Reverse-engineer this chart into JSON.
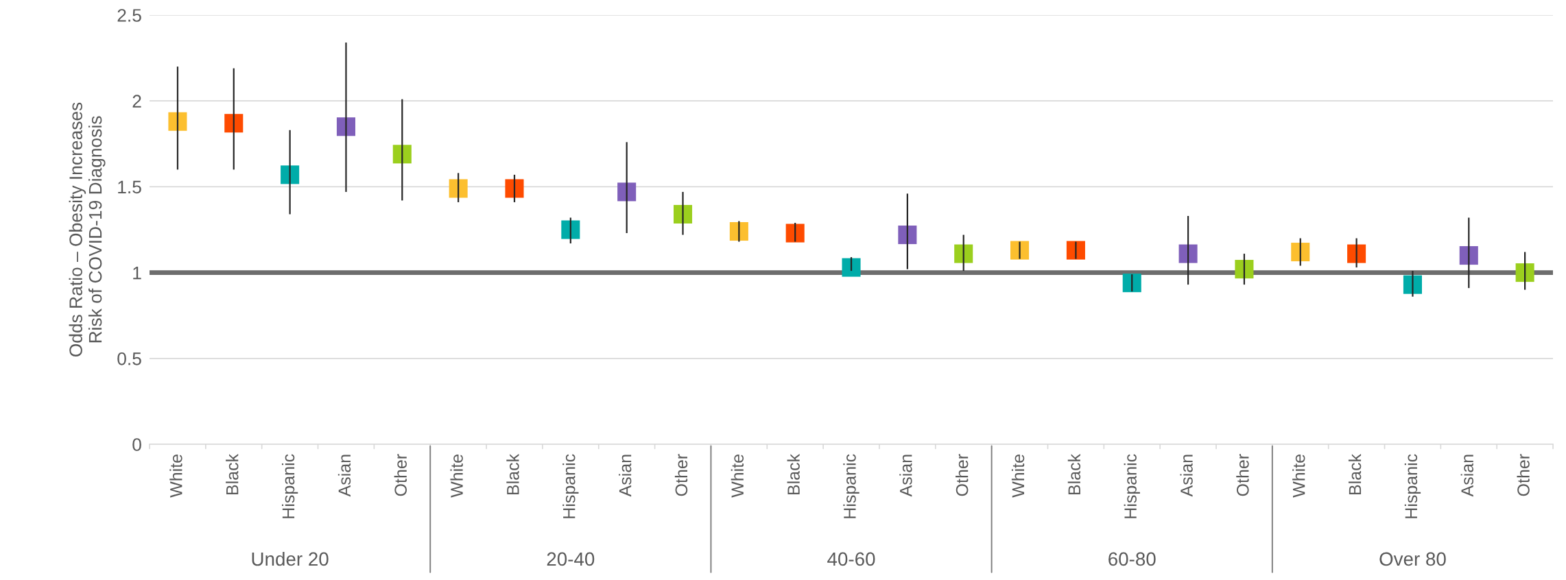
{
  "chart_data": {
    "type": "scatter",
    "ylabel": "Odds Ratio – Obesity Increases\nRisk of COVID-19 Diagnosis",
    "categories": [
      "White",
      "Black",
      "Hispanic",
      "Asian",
      "Other",
      "White",
      "Black",
      "Hispanic",
      "Asian",
      "Other",
      "White",
      "Black",
      "Hispanic",
      "Asian",
      "Other",
      "White",
      "Black",
      "Hispanic",
      "Asian",
      "Other",
      "White",
      "Black",
      "Hispanic",
      "Asian",
      "Other"
    ],
    "values": [
      1.88,
      1.87,
      1.57,
      1.85,
      1.69,
      1.49,
      1.49,
      1.25,
      1.47,
      1.34,
      1.24,
      1.23,
      1.03,
      1.22,
      1.11,
      1.13,
      1.13,
      0.94,
      1.11,
      1.02,
      1.12,
      1.11,
      0.93,
      1.1,
      1.0
    ],
    "errors": [
      [
        1.6,
        2.2
      ],
      [
        1.6,
        2.19
      ],
      [
        1.34,
        1.83
      ],
      [
        1.47,
        2.34
      ],
      [
        1.42,
        2.01
      ],
      [
        1.41,
        1.58
      ],
      [
        1.41,
        1.57
      ],
      [
        1.17,
        1.32
      ],
      [
        1.23,
        1.76
      ],
      [
        1.22,
        1.47
      ],
      [
        1.18,
        1.3
      ],
      [
        1.18,
        1.29
      ],
      [
        1.01,
        1.09
      ],
      [
        1.02,
        1.46
      ],
      [
        1.01,
        1.22
      ],
      [
        1.08,
        1.18
      ],
      [
        1.08,
        1.18
      ],
      [
        0.89,
        0.99
      ],
      [
        0.93,
        1.33
      ],
      [
        0.93,
        1.11
      ],
      [
        1.04,
        1.2
      ],
      [
        1.03,
        1.2
      ],
      [
        0.86,
        1.01
      ],
      [
        0.91,
        1.32
      ],
      [
        0.9,
        1.12
      ]
    ],
    "colors": [
      "#fcbf2f",
      "#fe4b00",
      "#00aca9",
      "#7f5fba",
      "#9bcf1e",
      "#fcbf2f",
      "#fe4b00",
      "#00aca9",
      "#7f5fba",
      "#9bcf1e",
      "#fcbf2f",
      "#fe4b00",
      "#00aca9",
      "#7f5fba",
      "#9bcf1e",
      "#fcbf2f",
      "#fe4b00",
      "#00aca9",
      "#7f5fba",
      "#9bcf1e",
      "#fcbf2f",
      "#fe4b00",
      "#00aca9",
      "#7f5fba",
      "#9bcf1e"
    ],
    "marker": "square",
    "ylim": [
      0,
      2.5
    ],
    "yticks": [
      0,
      0.5,
      1,
      1.5,
      2,
      2.5
    ],
    "grid": "y",
    "ref_lines": [
      {
        "axis": "y",
        "value": 1,
        "color": "#6d6d6d"
      }
    ],
    "annotations": [
      "Under 20",
      "20-40",
      "40-60",
      "60-80",
      "Over 80"
    ]
  }
}
